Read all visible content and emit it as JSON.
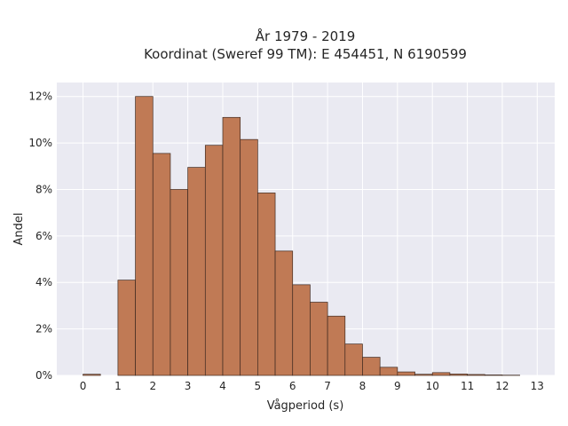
{
  "chart_data": {
    "type": "bar",
    "title": "År 1979 - 2019",
    "subtitle": "Koordinat (Sweref 99 TM): E 454451, N 6190599",
    "xlabel": "Vågperiod (s)",
    "ylabel": "Andel",
    "xlim": [
      -0.75,
      13.5
    ],
    "ylim": [
      0,
      12.6
    ],
    "x_ticks": [
      "0",
      "1",
      "2",
      "3",
      "4",
      "5",
      "6",
      "7",
      "8",
      "9",
      "10",
      "11",
      "12",
      "13"
    ],
    "y_ticks": [
      "0%",
      "2%",
      "4%",
      "6%",
      "8%",
      "10%",
      "12%"
    ],
    "y_tick_values": [
      0,
      2,
      4,
      6,
      8,
      10,
      12
    ],
    "bin_width": 0.5,
    "bin_starts": [
      0,
      0.5,
      1,
      1.5,
      2,
      2.5,
      3,
      3.5,
      4,
      4.5,
      5,
      5.5,
      6,
      6.5,
      7,
      7.5,
      8,
      8.5,
      9,
      9.5,
      10,
      10.5,
      11,
      11.5,
      12,
      12.5
    ],
    "values": [
      0.05,
      0,
      4.1,
      12.0,
      9.55,
      8.0,
      8.95,
      9.9,
      11.1,
      10.15,
      7.85,
      5.35,
      3.9,
      3.15,
      2.55,
      1.35,
      0.78,
      0.35,
      0.15,
      0.05,
      0.12,
      0.06,
      0.04,
      0.02,
      0.01,
      0
    ],
    "grid": true,
    "bar_color": "#c07a55",
    "bar_edge_color": "#3f2a20",
    "plot_background": "#eaeaf2",
    "grid_color": "#ffffff"
  }
}
